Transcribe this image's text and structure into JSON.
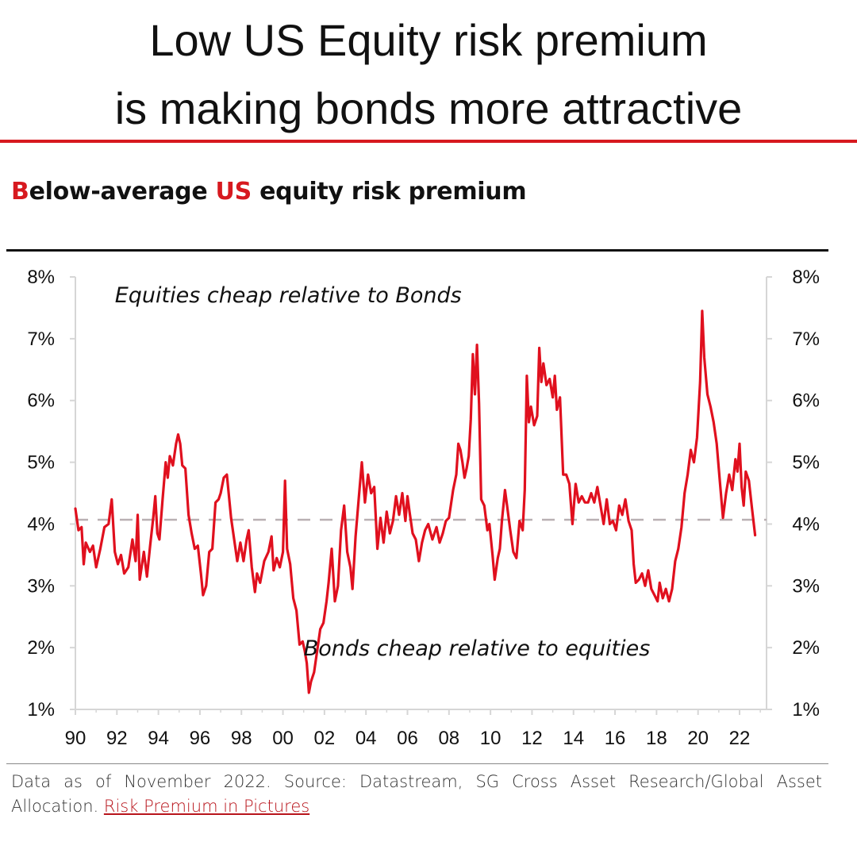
{
  "header": {
    "title_line1": "Low US Equity risk premium",
    "title_line2": "is making bonds more attractive"
  },
  "subtitle": {
    "first_letter": "B",
    "part1": "elow-average ",
    "highlight": "US",
    "part2": " equity risk premium"
  },
  "footnote": {
    "text": "Data as of November 2022. Source: Datastream, SG Cross Asset Research/Global Asset Allocation. ",
    "link_text": "Risk Premium in Pictures"
  },
  "colors": {
    "accent": "#d7191f",
    "line": "#e0101e",
    "average_line": "#b9b0b3"
  },
  "chart_data": {
    "type": "line",
    "title": "Below-average US equity risk premium",
    "xlim": [
      1990,
      2023.3
    ],
    "ylim": [
      1,
      8
    ],
    "x_ticks": [
      "90",
      "92",
      "94",
      "96",
      "98",
      "00",
      "02",
      "04",
      "06",
      "08",
      "10",
      "12",
      "14",
      "16",
      "18",
      "20",
      "22"
    ],
    "y_ticks": [
      "1%",
      "2%",
      "3%",
      "4%",
      "5%",
      "6%",
      "7%",
      "8%"
    ],
    "annotations": [
      {
        "text": "Equities cheap relative to Bonds",
        "x": 1991.9,
        "y": 7.72
      },
      {
        "text": "Bonds cheap relative to equities",
        "x": 2001.0,
        "y": 2.0
      }
    ],
    "average": 4.07,
    "series": [
      {
        "points": [
          [
            1990.0,
            4.25
          ],
          [
            1990.15,
            3.9
          ],
          [
            1990.3,
            3.95
          ],
          [
            1990.4,
            3.35
          ],
          [
            1990.5,
            3.7
          ],
          [
            1990.7,
            3.55
          ],
          [
            1990.85,
            3.65
          ],
          [
            1991.0,
            3.3
          ],
          [
            1991.2,
            3.6
          ],
          [
            1991.4,
            3.95
          ],
          [
            1991.6,
            4.0
          ],
          [
            1991.75,
            4.4
          ],
          [
            1991.9,
            3.55
          ],
          [
            1992.05,
            3.35
          ],
          [
            1992.2,
            3.5
          ],
          [
            1992.35,
            3.2
          ],
          [
            1992.55,
            3.3
          ],
          [
            1992.75,
            3.75
          ],
          [
            1992.9,
            3.4
          ],
          [
            1993.0,
            4.15
          ],
          [
            1993.1,
            3.1
          ],
          [
            1993.3,
            3.55
          ],
          [
            1993.45,
            3.15
          ],
          [
            1993.6,
            3.65
          ],
          [
            1993.75,
            4.1
          ],
          [
            1993.85,
            4.45
          ],
          [
            1993.95,
            3.85
          ],
          [
            1994.05,
            3.75
          ],
          [
            1994.2,
            4.4
          ],
          [
            1994.35,
            5.0
          ],
          [
            1994.45,
            4.75
          ],
          [
            1994.55,
            5.1
          ],
          [
            1994.7,
            4.95
          ],
          [
            1994.85,
            5.3
          ],
          [
            1994.95,
            5.45
          ],
          [
            1995.05,
            5.3
          ],
          [
            1995.15,
            4.95
          ],
          [
            1995.3,
            4.9
          ],
          [
            1995.45,
            4.15
          ],
          [
            1995.6,
            3.85
          ],
          [
            1995.75,
            3.6
          ],
          [
            1995.9,
            3.65
          ],
          [
            1996.05,
            3.2
          ],
          [
            1996.15,
            2.85
          ],
          [
            1996.3,
            3.0
          ],
          [
            1996.45,
            3.55
          ],
          [
            1996.6,
            3.6
          ],
          [
            1996.75,
            4.35
          ],
          [
            1996.9,
            4.4
          ],
          [
            1997.0,
            4.5
          ],
          [
            1997.15,
            4.75
          ],
          [
            1997.3,
            4.8
          ],
          [
            1997.5,
            4.1
          ],
          [
            1997.65,
            3.75
          ],
          [
            1997.8,
            3.4
          ],
          [
            1997.95,
            3.7
          ],
          [
            1998.1,
            3.4
          ],
          [
            1998.25,
            3.75
          ],
          [
            1998.35,
            3.9
          ],
          [
            1998.5,
            3.3
          ],
          [
            1998.65,
            2.9
          ],
          [
            1998.75,
            3.2
          ],
          [
            1998.9,
            3.05
          ],
          [
            1999.1,
            3.4
          ],
          [
            1999.3,
            3.55
          ],
          [
            1999.45,
            3.8
          ],
          [
            1999.55,
            3.25
          ],
          [
            1999.7,
            3.45
          ],
          [
            1999.85,
            3.3
          ],
          [
            2000.0,
            3.55
          ],
          [
            2000.1,
            4.7
          ],
          [
            2000.2,
            3.6
          ],
          [
            2000.35,
            3.35
          ],
          [
            2000.5,
            2.8
          ],
          [
            2000.65,
            2.6
          ],
          [
            2000.8,
            2.05
          ],
          [
            2000.95,
            2.1
          ],
          [
            2001.05,
            1.95
          ],
          [
            2001.15,
            1.75
          ],
          [
            2001.25,
            1.27
          ],
          [
            2001.35,
            1.45
          ],
          [
            2001.5,
            1.6
          ],
          [
            2001.65,
            1.95
          ],
          [
            2001.8,
            2.3
          ],
          [
            2001.95,
            2.4
          ],
          [
            2002.1,
            2.75
          ],
          [
            2002.2,
            3.05
          ],
          [
            2002.35,
            3.6
          ],
          [
            2002.5,
            2.75
          ],
          [
            2002.65,
            3.0
          ],
          [
            2002.8,
            3.9
          ],
          [
            2002.95,
            4.3
          ],
          [
            2003.1,
            3.55
          ],
          [
            2003.25,
            3.3
          ],
          [
            2003.35,
            2.95
          ],
          [
            2003.5,
            3.8
          ],
          [
            2003.7,
            4.6
          ],
          [
            2003.8,
            5.0
          ],
          [
            2003.95,
            4.35
          ],
          [
            2004.1,
            4.8
          ],
          [
            2004.25,
            4.5
          ],
          [
            2004.4,
            4.6
          ],
          [
            2004.55,
            3.6
          ],
          [
            2004.7,
            4.1
          ],
          [
            2004.85,
            3.7
          ],
          [
            2005.0,
            4.2
          ],
          [
            2005.15,
            3.85
          ],
          [
            2005.3,
            4.05
          ],
          [
            2005.45,
            4.45
          ],
          [
            2005.6,
            4.15
          ],
          [
            2005.75,
            4.5
          ],
          [
            2005.9,
            4.05
          ],
          [
            2006.0,
            4.45
          ],
          [
            2006.1,
            4.2
          ],
          [
            2006.25,
            3.85
          ],
          [
            2006.4,
            3.75
          ],
          [
            2006.55,
            3.4
          ],
          [
            2006.7,
            3.7
          ],
          [
            2006.85,
            3.9
          ],
          [
            2007.0,
            4.0
          ],
          [
            2007.2,
            3.75
          ],
          [
            2007.4,
            3.95
          ],
          [
            2007.55,
            3.7
          ],
          [
            2007.7,
            3.85
          ],
          [
            2007.85,
            4.05
          ],
          [
            2008.0,
            4.1
          ],
          [
            2008.2,
            4.55
          ],
          [
            2008.35,
            4.8
          ],
          [
            2008.45,
            5.3
          ],
          [
            2008.55,
            5.2
          ],
          [
            2008.65,
            5.0
          ],
          [
            2008.75,
            4.75
          ],
          [
            2008.85,
            4.9
          ],
          [
            2008.95,
            5.1
          ],
          [
            2009.05,
            5.7
          ],
          [
            2009.15,
            6.75
          ],
          [
            2009.25,
            6.1
          ],
          [
            2009.35,
            6.9
          ],
          [
            2009.45,
            5.95
          ],
          [
            2009.55,
            4.4
          ],
          [
            2009.7,
            4.3
          ],
          [
            2009.85,
            3.9
          ],
          [
            2009.95,
            4.0
          ],
          [
            2010.1,
            3.5
          ],
          [
            2010.2,
            3.1
          ],
          [
            2010.35,
            3.45
          ],
          [
            2010.45,
            3.6
          ],
          [
            2010.55,
            4.05
          ],
          [
            2010.7,
            4.55
          ],
          [
            2010.8,
            4.3
          ],
          [
            2010.95,
            3.9
          ],
          [
            2011.1,
            3.55
          ],
          [
            2011.25,
            3.45
          ],
          [
            2011.4,
            4.05
          ],
          [
            2011.55,
            3.9
          ],
          [
            2011.65,
            4.55
          ],
          [
            2011.75,
            6.4
          ],
          [
            2011.85,
            5.65
          ],
          [
            2011.95,
            5.9
          ],
          [
            2012.1,
            5.6
          ],
          [
            2012.25,
            5.75
          ],
          [
            2012.35,
            6.85
          ],
          [
            2012.45,
            6.3
          ],
          [
            2012.55,
            6.6
          ],
          [
            2012.7,
            6.25
          ],
          [
            2012.85,
            6.35
          ],
          [
            2013.0,
            6.05
          ],
          [
            2013.1,
            6.4
          ],
          [
            2013.2,
            5.85
          ],
          [
            2013.35,
            6.05
          ],
          [
            2013.5,
            4.8
          ],
          [
            2013.65,
            4.8
          ],
          [
            2013.8,
            4.65
          ],
          [
            2013.95,
            4.0
          ],
          [
            2014.1,
            4.65
          ],
          [
            2014.25,
            4.35
          ],
          [
            2014.4,
            4.45
          ],
          [
            2014.55,
            4.35
          ],
          [
            2014.7,
            4.35
          ],
          [
            2014.85,
            4.5
          ],
          [
            2015.0,
            4.35
          ],
          [
            2015.15,
            4.6
          ],
          [
            2015.3,
            4.3
          ],
          [
            2015.45,
            4.0
          ],
          [
            2015.6,
            4.4
          ],
          [
            2015.75,
            4.0
          ],
          [
            2015.9,
            4.05
          ],
          [
            2016.05,
            3.9
          ],
          [
            2016.2,
            4.3
          ],
          [
            2016.35,
            4.15
          ],
          [
            2016.5,
            4.4
          ],
          [
            2016.65,
            4.05
          ],
          [
            2016.8,
            3.9
          ],
          [
            2016.9,
            3.35
          ],
          [
            2017.0,
            3.05
          ],
          [
            2017.15,
            3.1
          ],
          [
            2017.3,
            3.2
          ],
          [
            2017.45,
            3.0
          ],
          [
            2017.6,
            3.25
          ],
          [
            2017.75,
            2.95
          ],
          [
            2017.9,
            2.85
          ],
          [
            2018.05,
            2.75
          ],
          [
            2018.15,
            3.05
          ],
          [
            2018.3,
            2.8
          ],
          [
            2018.45,
            2.95
          ],
          [
            2018.6,
            2.75
          ],
          [
            2018.75,
            2.95
          ],
          [
            2018.9,
            3.4
          ],
          [
            2019.05,
            3.6
          ],
          [
            2019.2,
            3.95
          ],
          [
            2019.35,
            4.5
          ],
          [
            2019.5,
            4.8
          ],
          [
            2019.65,
            5.2
          ],
          [
            2019.8,
            5.0
          ],
          [
            2019.95,
            5.4
          ],
          [
            2020.1,
            6.3
          ],
          [
            2020.2,
            7.45
          ],
          [
            2020.3,
            6.7
          ],
          [
            2020.45,
            6.1
          ],
          [
            2020.6,
            5.9
          ],
          [
            2020.75,
            5.65
          ],
          [
            2020.9,
            5.3
          ],
          [
            2021.05,
            4.7
          ],
          [
            2021.2,
            4.1
          ],
          [
            2021.35,
            4.5
          ],
          [
            2021.5,
            4.8
          ],
          [
            2021.65,
            4.55
          ],
          [
            2021.8,
            5.05
          ],
          [
            2021.9,
            4.85
          ],
          [
            2022.0,
            5.3
          ],
          [
            2022.1,
            4.6
          ],
          [
            2022.2,
            4.3
          ],
          [
            2022.3,
            4.85
          ],
          [
            2022.45,
            4.7
          ],
          [
            2022.6,
            4.25
          ],
          [
            2022.75,
            3.82
          ]
        ]
      }
    ]
  }
}
